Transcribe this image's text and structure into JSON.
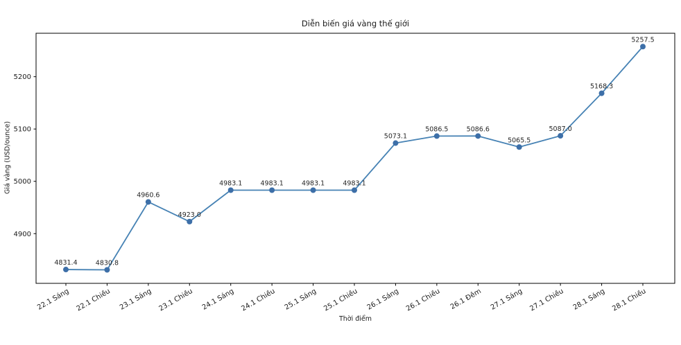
{
  "chart_data": {
    "type": "line",
    "title": "Diễn biến giá vàng thế giới",
    "xlabel": "Thời điểm",
    "ylabel": "Giá vàng (USD/ounce)",
    "categories": [
      "22.1 Sáng",
      "22.1 Chiều",
      "23.1 Sáng",
      "23.1 Chiều",
      "24.1 Sáng",
      "24.1 Chiều",
      "25.1 Sáng",
      "25.1 Chiều",
      "26.1 Sáng",
      "26.1 Chiều",
      "26.1 Đêm",
      "27.1 Sáng",
      "27.1 Chiều",
      "28.1 Sáng",
      "28.1 Chiều"
    ],
    "values": [
      4831.4,
      4830.8,
      4960.6,
      4923.0,
      4983.1,
      4983.1,
      4983.1,
      4983.1,
      5073.1,
      5086.5,
      5086.6,
      5065.5,
      5087.0,
      5168.3,
      5257.5
    ],
    "y_ticks": [
      4900,
      5000,
      5100,
      5200
    ],
    "ylim": [
      4805,
      5283
    ],
    "grid": false,
    "legend_position": "none",
    "line_color": "#4682b4",
    "marker_color": "#3d6fa8",
    "text_color": "#1a1a1a",
    "spine_color": "#000000"
  }
}
